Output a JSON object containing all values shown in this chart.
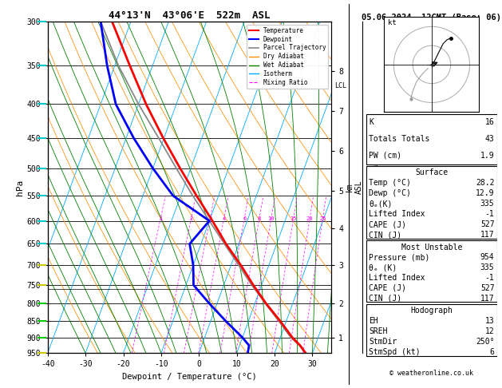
{
  "title_left": "44°13'N  43°06'E  522m  ASL",
  "title_right": "05.06.2024  12GMT (Base: 06)",
  "xlabel": "Dewpoint / Temperature (°C)",
  "ylabel_left": "hPa",
  "bg_color": "#ffffff",
  "plot_bg": "#ffffff",
  "pressure_levels": [
    300,
    350,
    400,
    450,
    500,
    550,
    600,
    650,
    700,
    750,
    800,
    850,
    900,
    950
  ],
  "temp_xlim": [
    -40,
    35
  ],
  "temp_xticks": [
    -40,
    -30,
    -20,
    -10,
    0,
    10,
    20,
    30
  ],
  "lcl_pressure": 760,
  "temperature_profile": {
    "pressure": [
      950,
      925,
      900,
      850,
      800,
      750,
      700,
      650,
      600,
      550,
      500,
      450,
      400,
      350,
      300
    ],
    "temp": [
      28.2,
      26.0,
      23.2,
      18.4,
      13.0,
      7.8,
      2.6,
      -3.4,
      -9.2,
      -15.8,
      -22.8,
      -30.2,
      -38.0,
      -46.0,
      -55.0
    ]
  },
  "dewpoint_profile": {
    "pressure": [
      950,
      925,
      900,
      850,
      800,
      750,
      700,
      650,
      600,
      550,
      500,
      450,
      400,
      350,
      300
    ],
    "temp": [
      12.9,
      12.5,
      10.0,
      4.0,
      -2.0,
      -8.0,
      -10.0,
      -13.0,
      -10.0,
      -22.0,
      -30.0,
      -38.0,
      -46.0,
      -52.0,
      -58.0
    ]
  },
  "parcel_profile": {
    "pressure": [
      950,
      925,
      900,
      850,
      800,
      750,
      700,
      650,
      600,
      550,
      500,
      450,
      400,
      350,
      300
    ],
    "temp": [
      28.2,
      25.8,
      22.8,
      18.0,
      12.8,
      7.4,
      2.0,
      -3.8,
      -10.0,
      -16.8,
      -23.8,
      -31.4,
      -40.0,
      -49.0,
      -58.0
    ]
  },
  "temp_color": "#ff0000",
  "dewpoint_color": "#0000ff",
  "parcel_color": "#888888",
  "dry_adiabat_color": "#ff8c00",
  "wet_adiabat_color": "#008000",
  "isotherm_color": "#00aaff",
  "mixing_ratio_color": "#ff00ff",
  "mixing_ratio_values": [
    1,
    2,
    3,
    4,
    6,
    8,
    10,
    15,
    20,
    25
  ],
  "km_map": {
    "1": 900,
    "2": 800,
    "3": 700,
    "4": 616,
    "5": 540,
    "6": 470,
    "7": 410,
    "8": 357
  },
  "stats": {
    "K": 16,
    "Totals_Totals": 43,
    "PW_cm": 1.9,
    "Surface_Temp": 28.2,
    "Surface_Dewp": 12.9,
    "Surface_theta_e": 335,
    "Surface_LI": -1,
    "Surface_CAPE": 527,
    "Surface_CIN": 117,
    "MU_Pressure": 954,
    "MU_theta_e": 335,
    "MU_LI": -1,
    "MU_CAPE": 527,
    "MU_CIN": 117,
    "EH": 13,
    "SREH": 12,
    "StmDir": 250,
    "StmSpd": 6
  },
  "copyright": "© weatheronline.co.uk",
  "wind_barb_colors": {
    "300": "#00cccc",
    "350": "#00cccc",
    "400": "#00cccc",
    "450": "#00cccc",
    "500": "#00cccc",
    "550": "#00cccc",
    "600": "#00cccc",
    "650": "#00cccc",
    "700": "#cccc00",
    "750": "#cccc00",
    "800": "#00cc00",
    "850": "#00cc00",
    "900": "#00cc00",
    "950": "#cccc00"
  }
}
